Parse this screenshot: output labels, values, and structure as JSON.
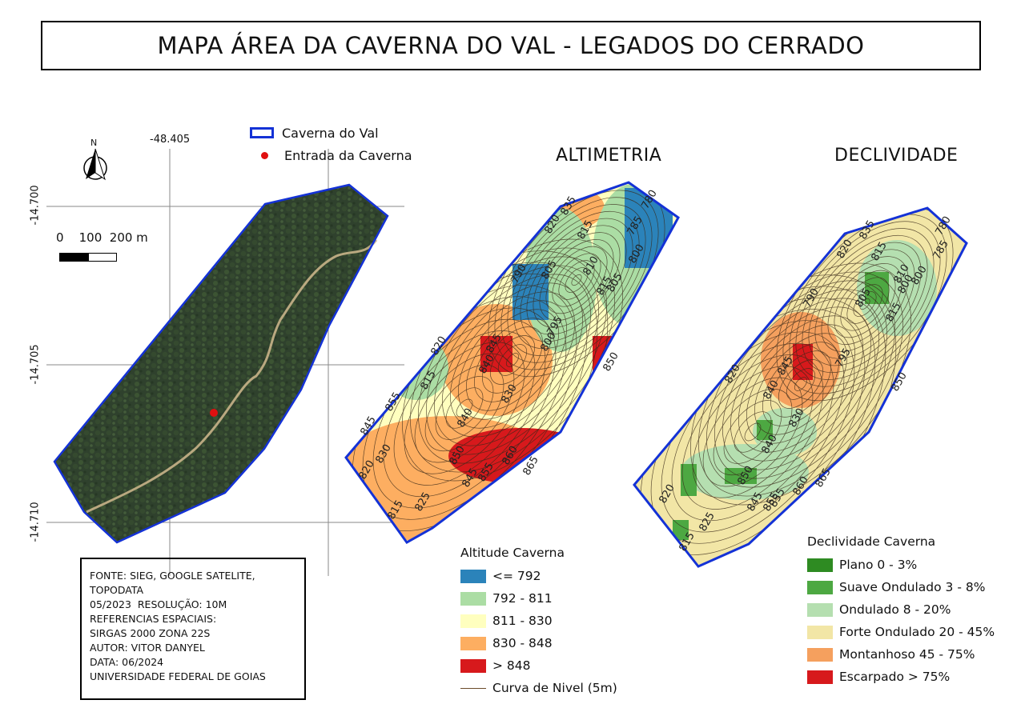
{
  "title": "MAPA ÁREA DA CAVERNA DO VAL - LEGADOS DO CERRADO",
  "locator": {
    "longitude_label": "-48.405",
    "latitude_labels": [
      "-14.700",
      "-14.705",
      "-14.710"
    ],
    "north_label": "N",
    "scale": {
      "labels": "0    100  200 m"
    },
    "legend": {
      "polygon_label": "Caverna do Val",
      "point_label": "Entrada da Caverna"
    }
  },
  "altimetria": {
    "title": "ALTIMETRIA",
    "legend_title": "Altitude Caverna",
    "classes": [
      {
        "label": "<= 792",
        "color": "#2b83ba"
      },
      {
        "label": "792 - 811",
        "color": "#abdda4"
      },
      {
        "label": "811 - 830",
        "color": "#ffffbf"
      },
      {
        "label": "830 - 848",
        "color": "#fdae61"
      },
      {
        "label": "> 848",
        "color": "#d7191c"
      }
    ],
    "contour_label": "Curva de Nivel (5m)"
  },
  "declividade": {
    "title": "DECLIVIDADE",
    "legend_title": "Declividade Caverna",
    "classes": [
      {
        "label": "Plano 0 - 3%",
        "color": "#2e8b22"
      },
      {
        "label": "Suave Ondulado 3 - 8%",
        "color": "#4da842"
      },
      {
        "label": "Ondulado 8 - 20%",
        "color": "#b5dfb0"
      },
      {
        "label": "Forte Ondulado 20 - 45%",
        "color": "#f2e6a6"
      },
      {
        "label": "Montanhoso 45 - 75%",
        "color": "#f5a05e"
      },
      {
        "label": "Escarpado > 75%",
        "color": "#d7191c"
      }
    ]
  },
  "source": {
    "lines": [
      "FONTE: SIEG, GOOGLE SATELITE,",
      "TOPODATA",
      "05/2023  RESOLUÇÃO: 10M",
      "REFERENCIAS ESPACIAIS:",
      "SIRGAS 2000 ZONA 22S",
      "AUTOR: VITOR DANYEL",
      "DATA: 06/2024",
      "UNIVERSIDADE FEDERAL DE GOIAS"
    ]
  },
  "contour_labels": {
    "altimetria": [
      "835",
      "820",
      "815",
      "810",
      "800",
      "785",
      "780",
      "790",
      "805",
      "815",
      "795",
      "800",
      "805",
      "850",
      "845",
      "840",
      "820",
      "815",
      "830",
      "840",
      "855",
      "845",
      "830",
      "850",
      "845",
      "855",
      "860",
      "865",
      "820",
      "825",
      "815"
    ],
    "declividade": [
      "835",
      "820",
      "815",
      "810",
      "805",
      "800",
      "780",
      "790",
      "785",
      "815",
      "845",
      "840",
      "820",
      "795",
      "800",
      "850",
      "830",
      "855",
      "840",
      "850",
      "845",
      "855",
      "860",
      "865",
      "820",
      "825",
      "815"
    ]
  },
  "colors": {
    "boundary": "#1432d6",
    "entrance": "#e01010",
    "contour": "#3a2a1a"
  }
}
